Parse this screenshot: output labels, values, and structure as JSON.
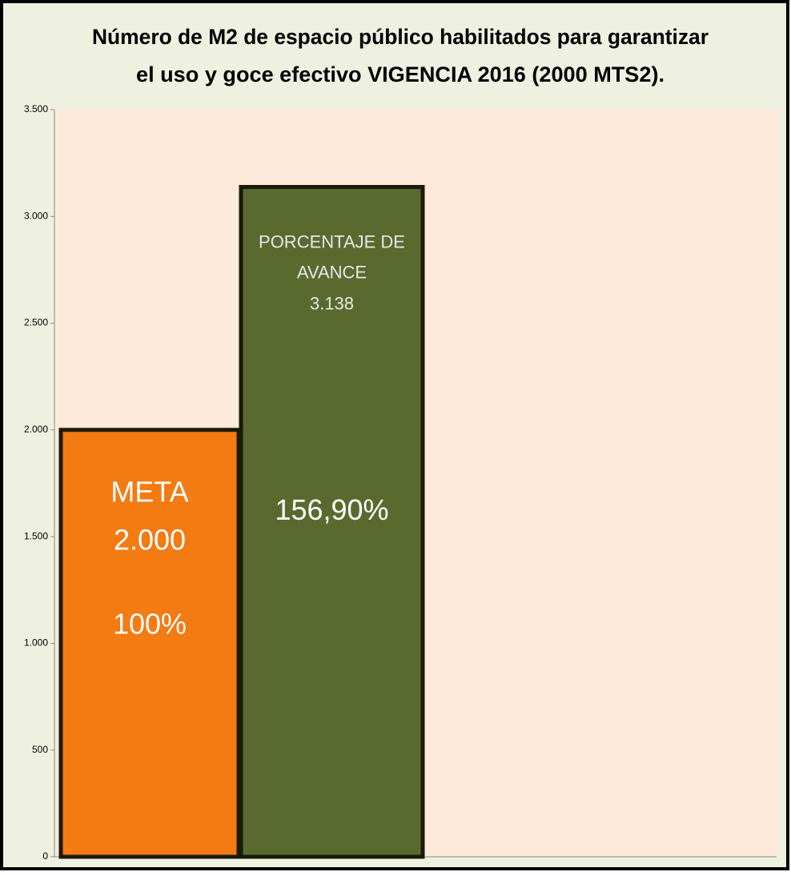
{
  "chart_data": {
    "type": "bar",
    "title": [
      "Número de M2 de espacio público habilitados para garantizar",
      "el uso y goce efectivo VIGENCIA 2016 (2000 MTS2)."
    ],
    "categories": [
      null,
      null
    ],
    "values": [
      2000,
      3138
    ],
    "colors": [
      "#f47a12",
      "#5a6a2f"
    ],
    "label_titles": [
      [
        "META"
      ],
      [
        "PORCENTAJE DE",
        "AVANCE"
      ]
    ],
    "value_labels": [
      "2.000",
      "3.138"
    ],
    "percent_labels": [
      "100%",
      "156,90%"
    ],
    "ylim": [
      0,
      3500
    ],
    "yticks": [
      0,
      500,
      {
        "value": 1000,
        "label": "1.000"
      },
      {
        "value": 1500,
        "label": "1.500"
      },
      {
        "value": 2000,
        "label": "2.000"
      },
      {
        "value": 2500,
        "label": "2.500"
      },
      {
        "value": 3000,
        "label": "3.000"
      },
      {
        "value": 3500,
        "label": "3.500"
      }
    ],
    "grid": false
  }
}
